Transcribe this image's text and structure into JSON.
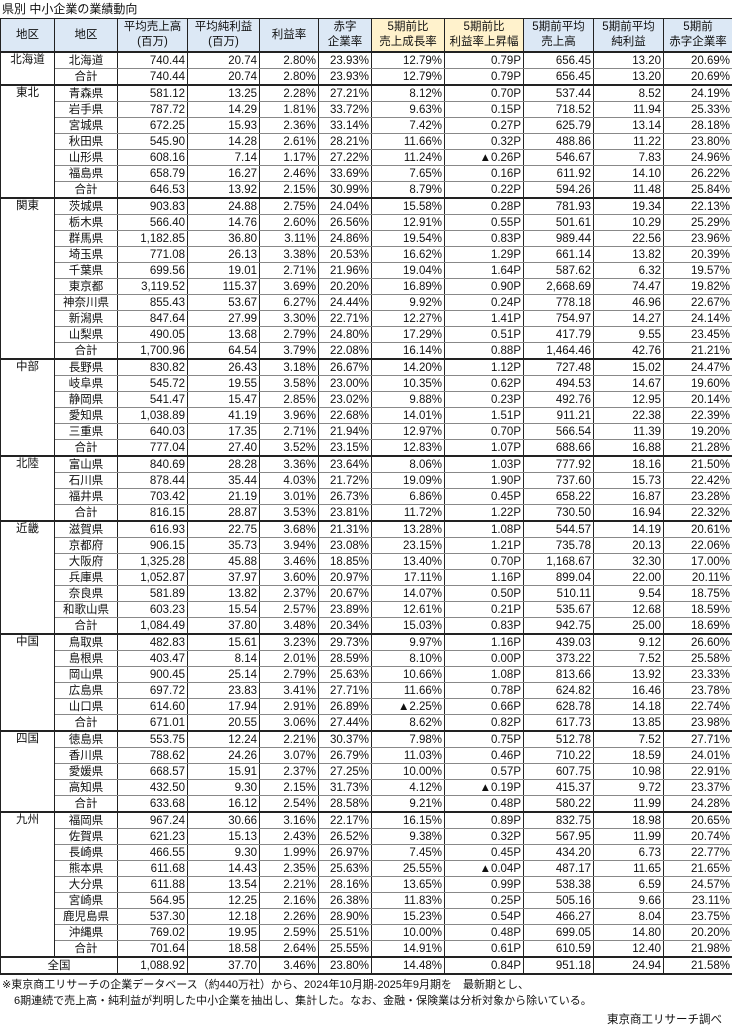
{
  "title": "県別 中小企業の業績動向",
  "headers": [
    "地区",
    "地区",
    "平均売上高\n(百万)",
    "平均純利益\n(百万)",
    "利益率",
    "赤字\n企業率",
    "5期前比\n売上成長率",
    "5期前比\n利益率上昇幅",
    "5期前平均\n売上高",
    "5期前平均\n純利益",
    "5期前\n赤字企業率"
  ],
  "highlight_color": "#fff2cc",
  "header_color": "#dce8f5",
  "regions": [
    {
      "name": "北海道",
      "rows": [
        [
          "北海道",
          "740.44",
          "20.74",
          "2.80%",
          "23.93%",
          "12.79%",
          "0.79P",
          "656.45",
          "13.20",
          "20.69%"
        ]
      ],
      "total": [
        "合計",
        "740.44",
        "20.74",
        "2.80%",
        "23.93%",
        "12.79%",
        "0.79P",
        "656.45",
        "13.20",
        "20.69%"
      ]
    },
    {
      "name": "東北",
      "rows": [
        [
          "青森県",
          "581.12",
          "13.25",
          "2.28%",
          "27.21%",
          "8.12%",
          "0.70P",
          "537.44",
          "8.52",
          "24.19%"
        ],
        [
          "岩手県",
          "787.72",
          "14.29",
          "1.81%",
          "33.72%",
          "9.63%",
          "0.15P",
          "718.52",
          "11.94",
          "25.33%"
        ],
        [
          "宮城県",
          "672.25",
          "15.93",
          "2.36%",
          "33.14%",
          "7.42%",
          "0.27P",
          "625.79",
          "13.14",
          "28.18%"
        ],
        [
          "秋田県",
          "545.90",
          "14.28",
          "2.61%",
          "28.21%",
          "11.66%",
          "0.32P",
          "488.86",
          "11.22",
          "23.80%"
        ],
        [
          "山形県",
          "608.16",
          "7.14",
          "1.17%",
          "27.22%",
          "11.24%",
          "▲0.26P",
          "546.67",
          "7.83",
          "24.96%"
        ],
        [
          "福島県",
          "658.79",
          "16.27",
          "2.46%",
          "33.69%",
          "7.65%",
          "0.16P",
          "611.92",
          "14.10",
          "26.22%"
        ]
      ],
      "total": [
        "合計",
        "646.53",
        "13.92",
        "2.15%",
        "30.99%",
        "8.79%",
        "0.22P",
        "594.26",
        "11.48",
        "25.84%"
      ]
    },
    {
      "name": "関東",
      "rows": [
        [
          "茨城県",
          "903.83",
          "24.88",
          "2.75%",
          "24.04%",
          "15.58%",
          "0.28P",
          "781.93",
          "19.34",
          "22.13%"
        ],
        [
          "栃木県",
          "566.40",
          "14.76",
          "2.60%",
          "26.56%",
          "12.91%",
          "0.55P",
          "501.61",
          "10.29",
          "25.29%"
        ],
        [
          "群馬県",
          "1,182.85",
          "36.80",
          "3.11%",
          "24.86%",
          "19.54%",
          "0.83P",
          "989.44",
          "22.56",
          "23.96%"
        ],
        [
          "埼玉県",
          "771.08",
          "26.13",
          "3.38%",
          "20.53%",
          "16.62%",
          "1.29P",
          "661.14",
          "13.82",
          "20.39%"
        ],
        [
          "千葉県",
          "699.56",
          "19.01",
          "2.71%",
          "21.96%",
          "19.04%",
          "1.64P",
          "587.62",
          "6.32",
          "19.57%"
        ],
        [
          "東京都",
          "3,119.52",
          "115.37",
          "3.69%",
          "20.20%",
          "16.89%",
          "0.90P",
          "2,668.69",
          "74.47",
          "19.82%"
        ],
        [
          "神奈川県",
          "855.43",
          "53.67",
          "6.27%",
          "24.44%",
          "9.92%",
          "0.24P",
          "778.18",
          "46.96",
          "22.67%"
        ],
        [
          "新潟県",
          "847.64",
          "27.99",
          "3.30%",
          "22.71%",
          "12.27%",
          "1.41P",
          "754.97",
          "14.27",
          "24.14%"
        ],
        [
          "山梨県",
          "490.05",
          "13.68",
          "2.79%",
          "24.80%",
          "17.29%",
          "0.51P",
          "417.79",
          "9.55",
          "23.45%"
        ]
      ],
      "total": [
        "合計",
        "1,700.96",
        "64.54",
        "3.79%",
        "22.08%",
        "16.14%",
        "0.88P",
        "1,464.46",
        "42.76",
        "21.21%"
      ]
    },
    {
      "name": "中部",
      "rows": [
        [
          "長野県",
          "830.82",
          "26.43",
          "3.18%",
          "26.67%",
          "14.20%",
          "1.12P",
          "727.48",
          "15.02",
          "24.47%"
        ],
        [
          "岐阜県",
          "545.72",
          "19.55",
          "3.58%",
          "23.00%",
          "10.35%",
          "0.62P",
          "494.53",
          "14.67",
          "19.60%"
        ],
        [
          "静岡県",
          "541.47",
          "15.47",
          "2.85%",
          "23.02%",
          "9.88%",
          "0.23P",
          "492.76",
          "12.95",
          "20.14%"
        ],
        [
          "愛知県",
          "1,038.89",
          "41.19",
          "3.96%",
          "22.68%",
          "14.01%",
          "1.51P",
          "911.21",
          "22.38",
          "22.39%"
        ],
        [
          "三重県",
          "640.03",
          "17.35",
          "2.71%",
          "21.94%",
          "12.97%",
          "0.70P",
          "566.54",
          "11.39",
          "19.20%"
        ]
      ],
      "total": [
        "合計",
        "777.04",
        "27.40",
        "3.52%",
        "23.15%",
        "12.83%",
        "1.07P",
        "688.66",
        "16.88",
        "21.28%"
      ]
    },
    {
      "name": "北陸",
      "rows": [
        [
          "富山県",
          "840.69",
          "28.28",
          "3.36%",
          "23.64%",
          "8.06%",
          "1.03P",
          "777.92",
          "18.16",
          "21.50%"
        ],
        [
          "石川県",
          "878.44",
          "35.44",
          "4.03%",
          "21.72%",
          "19.09%",
          "1.90P",
          "737.60",
          "15.73",
          "22.42%"
        ],
        [
          "福井県",
          "703.42",
          "21.19",
          "3.01%",
          "26.73%",
          "6.86%",
          "0.45P",
          "658.22",
          "16.87",
          "23.28%"
        ]
      ],
      "total": [
        "合計",
        "816.15",
        "28.87",
        "3.53%",
        "23.81%",
        "11.72%",
        "1.22P",
        "730.50",
        "16.94",
        "22.32%"
      ]
    },
    {
      "name": "近畿",
      "rows": [
        [
          "滋賀県",
          "616.93",
          "22.75",
          "3.68%",
          "21.31%",
          "13.28%",
          "1.08P",
          "544.57",
          "14.19",
          "20.61%"
        ],
        [
          "京都府",
          "906.15",
          "35.73",
          "3.94%",
          "23.08%",
          "23.15%",
          "1.21P",
          "735.78",
          "20.13",
          "22.06%"
        ],
        [
          "大阪府",
          "1,325.28",
          "45.88",
          "3.46%",
          "18.85%",
          "13.40%",
          "0.70P",
          "1,168.67",
          "32.30",
          "17.00%"
        ],
        [
          "兵庫県",
          "1,052.87",
          "37.97",
          "3.60%",
          "20.97%",
          "17.11%",
          "1.16P",
          "899.04",
          "22.00",
          "20.11%"
        ],
        [
          "奈良県",
          "581.89",
          "13.82",
          "2.37%",
          "20.67%",
          "14.07%",
          "0.50P",
          "510.11",
          "9.54",
          "18.75%"
        ],
        [
          "和歌山県",
          "603.23",
          "15.54",
          "2.57%",
          "23.89%",
          "12.61%",
          "0.21P",
          "535.67",
          "12.68",
          "18.59%"
        ]
      ],
      "total": [
        "合計",
        "1,084.49",
        "37.80",
        "3.48%",
        "20.34%",
        "15.03%",
        "0.83P",
        "942.75",
        "25.00",
        "18.69%"
      ]
    },
    {
      "name": "中国",
      "rows": [
        [
          "鳥取県",
          "482.83",
          "15.61",
          "3.23%",
          "29.73%",
          "9.97%",
          "1.16P",
          "439.03",
          "9.12",
          "26.60%"
        ],
        [
          "島根県",
          "403.47",
          "8.14",
          "2.01%",
          "28.59%",
          "8.10%",
          "0.00P",
          "373.22",
          "7.52",
          "25.58%"
        ],
        [
          "岡山県",
          "900.45",
          "25.14",
          "2.79%",
          "25.63%",
          "10.66%",
          "1.08P",
          "813.66",
          "13.92",
          "23.33%"
        ],
        [
          "広島県",
          "697.72",
          "23.83",
          "3.41%",
          "27.71%",
          "11.66%",
          "0.78P",
          "624.82",
          "16.46",
          "23.78%"
        ],
        [
          "山口県",
          "614.60",
          "17.94",
          "2.91%",
          "26.89%",
          "▲2.25%",
          "0.66P",
          "628.78",
          "14.18",
          "22.74%"
        ]
      ],
      "total": [
        "合計",
        "671.01",
        "20.55",
        "3.06%",
        "27.44%",
        "8.62%",
        "0.82P",
        "617.73",
        "13.85",
        "23.98%"
      ]
    },
    {
      "name": "四国",
      "rows": [
        [
          "徳島県",
          "553.75",
          "12.24",
          "2.21%",
          "30.37%",
          "7.98%",
          "0.75P",
          "512.78",
          "7.52",
          "27.71%"
        ],
        [
          "香川県",
          "788.62",
          "24.26",
          "3.07%",
          "26.79%",
          "11.03%",
          "0.46P",
          "710.22",
          "18.59",
          "24.01%"
        ],
        [
          "愛媛県",
          "668.57",
          "15.91",
          "2.37%",
          "27.25%",
          "10.00%",
          "0.57P",
          "607.75",
          "10.98",
          "22.91%"
        ],
        [
          "高知県",
          "432.50",
          "9.30",
          "2.15%",
          "31.73%",
          "4.12%",
          "▲0.19P",
          "415.37",
          "9.72",
          "23.37%"
        ]
      ],
      "total": [
        "合計",
        "633.68",
        "16.12",
        "2.54%",
        "28.58%",
        "9.21%",
        "0.48P",
        "580.22",
        "11.99",
        "24.28%"
      ]
    },
    {
      "name": "九州",
      "rows": [
        [
          "福岡県",
          "967.24",
          "30.66",
          "3.16%",
          "22.17%",
          "16.15%",
          "0.89P",
          "832.75",
          "18.98",
          "20.65%"
        ],
        [
          "佐賀県",
          "621.23",
          "15.13",
          "2.43%",
          "26.52%",
          "9.38%",
          "0.32P",
          "567.95",
          "11.99",
          "20.74%"
        ],
        [
          "長崎県",
          "466.55",
          "9.30",
          "1.99%",
          "26.97%",
          "7.45%",
          "0.45P",
          "434.20",
          "6.73",
          "22.77%"
        ],
        [
          "熊本県",
          "611.68",
          "14.43",
          "2.35%",
          "25.63%",
          "25.55%",
          "▲0.04P",
          "487.17",
          "11.65",
          "21.65%"
        ],
        [
          "大分県",
          "611.88",
          "13.54",
          "2.21%",
          "28.16%",
          "13.65%",
          "0.99P",
          "538.38",
          "6.59",
          "24.57%"
        ],
        [
          "宮崎県",
          "564.95",
          "12.25",
          "2.16%",
          "26.38%",
          "11.83%",
          "0.25P",
          "505.16",
          "9.66",
          "23.11%"
        ],
        [
          "鹿児島県",
          "537.30",
          "12.18",
          "2.26%",
          "28.90%",
          "15.23%",
          "0.54P",
          "466.27",
          "8.04",
          "23.75%"
        ],
        [
          "沖縄県",
          "769.02",
          "19.95",
          "2.59%",
          "25.51%",
          "10.00%",
          "0.48P",
          "699.05",
          "14.80",
          "20.20%"
        ]
      ],
      "total": [
        "合計",
        "701.64",
        "18.58",
        "2.64%",
        "25.55%",
        "14.91%",
        "0.61P",
        "610.59",
        "12.40",
        "21.98%"
      ]
    }
  ],
  "national": [
    "全国",
    "1,088.92",
    "37.70",
    "3.46%",
    "23.80%",
    "14.48%",
    "0.84P",
    "951.18",
    "24.94",
    "21.58%"
  ],
  "footnote": [
    "※東京商工リサーチの企業データベース（約440万社）から、2024年10月期-2025年9月期を　最新期とし、",
    "6期連続で売上高・純利益が判明した中小企業を抽出し、集計した。なお、金融・保険業は分析対象から除いている。"
  ],
  "credit": "東京商工リサーチ調べ"
}
